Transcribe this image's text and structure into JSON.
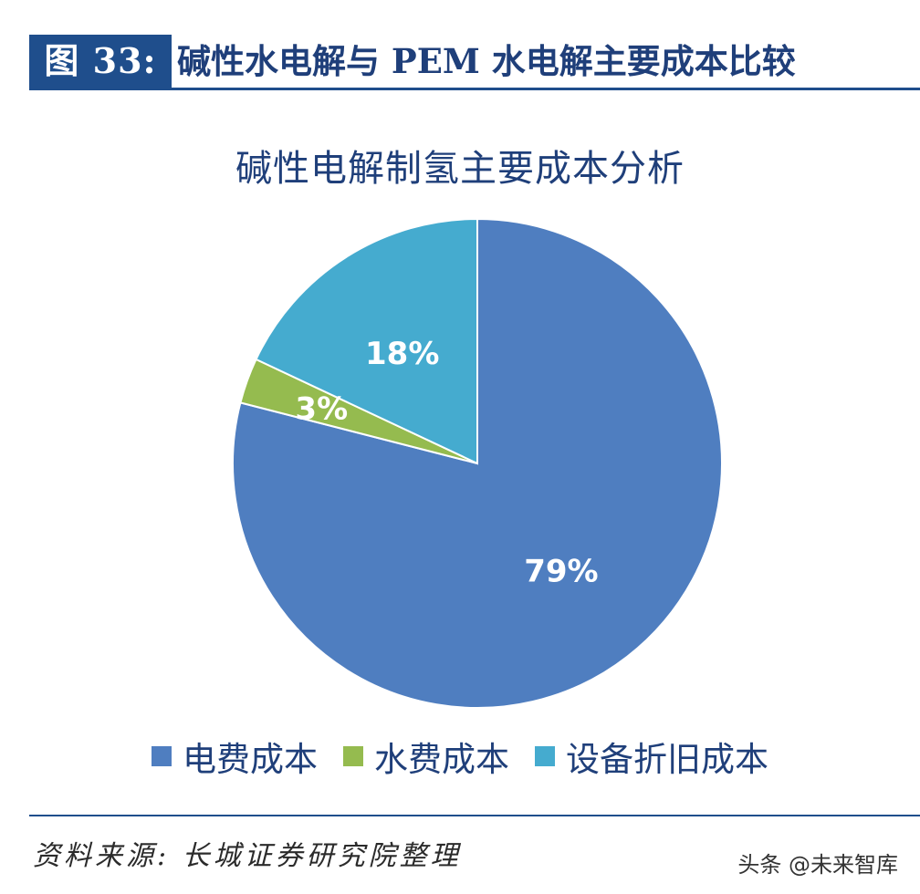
{
  "figure": {
    "label": "图 33:",
    "title": "碱性水电解与 PEM 水电解主要成本比较"
  },
  "chart_data": {
    "type": "pie",
    "title": "碱性电解制氢主要成本分析",
    "slices": [
      {
        "label": "电费成本",
        "value": 79,
        "display": "79%",
        "color": "#4f7ec0"
      },
      {
        "label": "水费成本",
        "value": 3,
        "display": "3%",
        "color": "#95bb4f"
      },
      {
        "label": "设备折旧成本",
        "value": 18,
        "display": "18%",
        "color": "#45abcf"
      }
    ],
    "start": "12 o'clock",
    "direction": "clockwise",
    "legend_position": "bottom"
  },
  "source": "资料来源:   长城证券研究院整理",
  "watermark": "头条 @未来智库"
}
